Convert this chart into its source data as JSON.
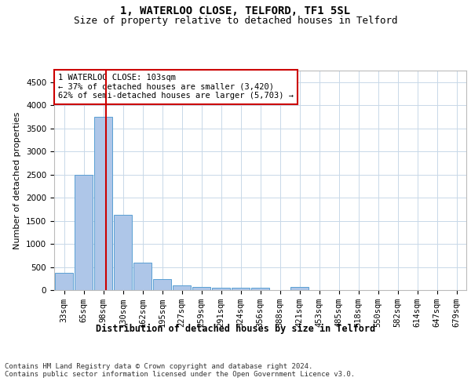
{
  "title1": "1, WATERLOO CLOSE, TELFORD, TF1 5SL",
  "title2": "Size of property relative to detached houses in Telford",
  "xlabel": "Distribution of detached houses by size in Telford",
  "ylabel": "Number of detached properties",
  "categories": [
    "33sqm",
    "65sqm",
    "98sqm",
    "130sqm",
    "162sqm",
    "195sqm",
    "227sqm",
    "259sqm",
    "291sqm",
    "324sqm",
    "356sqm",
    "388sqm",
    "421sqm",
    "453sqm",
    "485sqm",
    "518sqm",
    "550sqm",
    "582sqm",
    "614sqm",
    "647sqm",
    "679sqm"
  ],
  "values": [
    375,
    2500,
    3750,
    1625,
    600,
    240,
    105,
    65,
    55,
    55,
    55,
    0,
    65,
    0,
    0,
    0,
    0,
    0,
    0,
    0,
    0
  ],
  "bar_color": "#aec6e8",
  "bar_edgecolor": "#5a9fd4",
  "vline_color": "#cc0000",
  "annotation_text": "1 WATERLOO CLOSE: 103sqm\n← 37% of detached houses are smaller (3,420)\n62% of semi-detached houses are larger (5,703) →",
  "annotation_box_color": "#ffffff",
  "annotation_box_edgecolor": "#cc0000",
  "background_color": "#ffffff",
  "grid_color": "#c8d8e8",
  "ylim": [
    0,
    4750
  ],
  "yticks": [
    0,
    500,
    1000,
    1500,
    2000,
    2500,
    3000,
    3500,
    4000,
    4500
  ],
  "footer_text": "Contains HM Land Registry data © Crown copyright and database right 2024.\nContains public sector information licensed under the Open Government Licence v3.0.",
  "title1_fontsize": 10,
  "title2_fontsize": 9,
  "xlabel_fontsize": 8.5,
  "ylabel_fontsize": 8,
  "tick_fontsize": 7.5,
  "annotation_fontsize": 7.5,
  "footer_fontsize": 6.5
}
